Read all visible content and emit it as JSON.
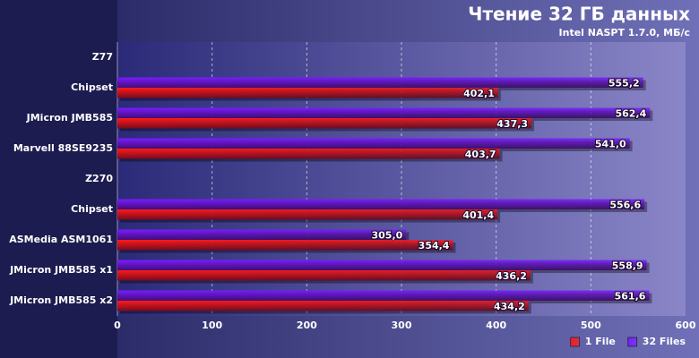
{
  "chart_data": {
    "type": "hbar",
    "title": "Чтение 32 ГБ данных",
    "subtitle": "Intel NASPT 1.7.0, МБ/с",
    "categories": [
      "Z77",
      "Chipset",
      "JMicron JMB585",
      "Marvell 88SE9235",
      "Z270",
      "Chipset",
      "ASMedia ASM1061",
      "JMicron JMB585 x1",
      "JMicron JMB585 x2"
    ],
    "series": [
      {
        "name": "32 Files",
        "color": "#7a1cff",
        "values": [
          null,
          555.2,
          562.4,
          541.0,
          null,
          556.6,
          305.0,
          558.9,
          561.6
        ],
        "value_labels": [
          null,
          "555,2",
          "562,4",
          "541,0",
          null,
          "556,6",
          "305,0",
          "558,9",
          "561,6"
        ]
      },
      {
        "name": "1 File",
        "color": "#ff1a1a",
        "values": [
          null,
          402.1,
          437.3,
          403.7,
          null,
          401.4,
          354.4,
          436.2,
          434.2
        ],
        "value_labels": [
          null,
          "402,1",
          "437,3",
          "403,7",
          null,
          "401,4",
          "354,4",
          "436,2",
          "434,2"
        ]
      }
    ],
    "legend_order": [
      "1 File",
      "32 Files"
    ],
    "xlim": [
      0,
      600
    ],
    "xticks": [
      0,
      100,
      200,
      300,
      400,
      500,
      600
    ],
    "grid": true,
    "legend": "bottom-right"
  }
}
